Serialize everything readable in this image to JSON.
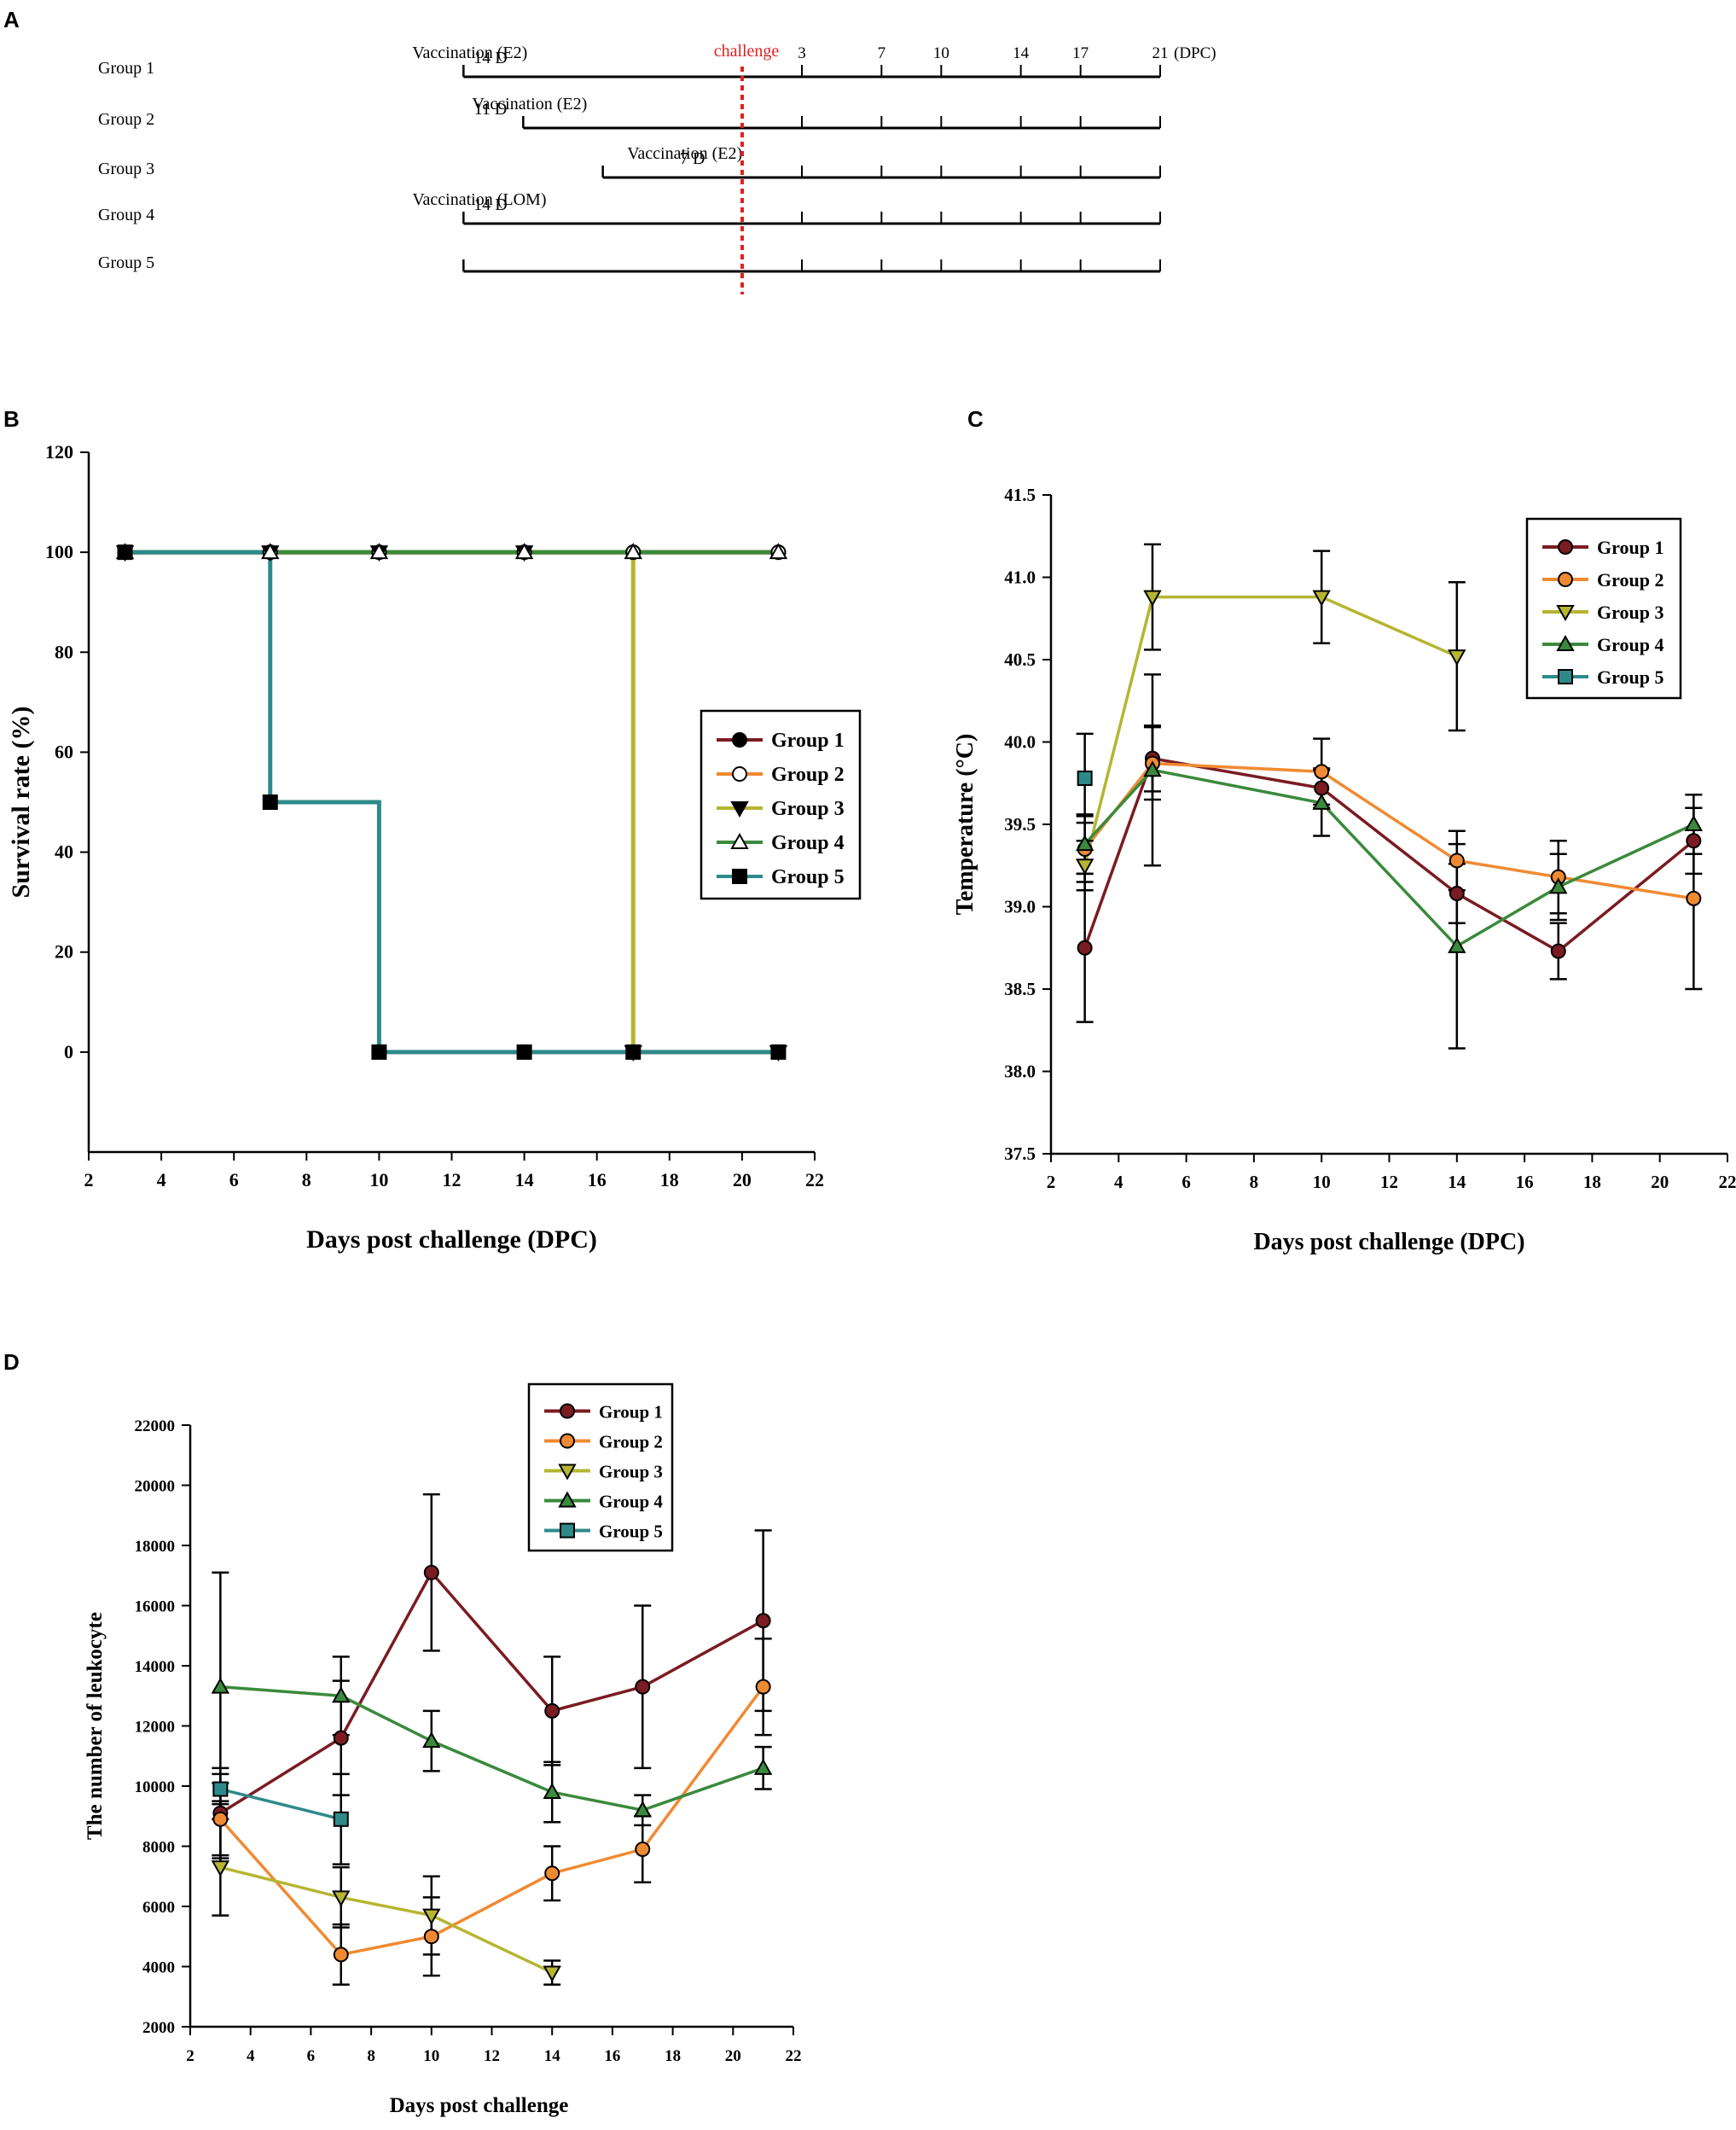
{
  "panels": {
    "A": "A",
    "B": "B",
    "C": "C",
    "D": "D"
  },
  "colors": {
    "group1": "#7a1c22",
    "group2": "#f08a32",
    "group3": "#b5b532",
    "group4": "#3a8a3c",
    "group5": "#2e8a8a",
    "challenge": "#e02020",
    "axis": "#000000"
  },
  "timeline": {
    "challenge_label": "challenge",
    "dpc_suffix": "(DPC)",
    "day_ticks": [
      "3",
      "7",
      "10",
      "14",
      "17",
      "21"
    ],
    "groups": [
      {
        "name": "Group 1",
        "vaccine": "Vaccination (E2)",
        "interval": "14 D",
        "start_day": -14
      },
      {
        "name": "Group 2",
        "vaccine": "Vaccination (E2)",
        "interval": "11 D",
        "start_day": -11
      },
      {
        "name": "Group 3",
        "vaccine": "Vaccination (E2)",
        "interval": "7 D",
        "start_day": -7
      },
      {
        "name": "Group 4",
        "vaccine": "Vaccination (LOM)",
        "interval": "14 D",
        "start_day": -14
      },
      {
        "name": "Group 5",
        "vaccine": "",
        "interval": "",
        "start_day": -14
      }
    ]
  },
  "chart_data": [
    {
      "id": "survival",
      "type": "line",
      "step": true,
      "xlabel": "Days post challenge (DPC)",
      "ylabel": "Survival rate (%)",
      "xlim": [
        2,
        22
      ],
      "ylim": [
        -20,
        120
      ],
      "xticks": [
        2,
        4,
        6,
        8,
        10,
        12,
        14,
        16,
        18,
        20,
        22
      ],
      "yticks": [
        0,
        20,
        40,
        60,
        80,
        100,
        120
      ],
      "legend": "middle-right",
      "series": [
        {
          "name": "Group 1",
          "marker": "circle-filled",
          "x": [
            3,
            7,
            10,
            14,
            17,
            21
          ],
          "values": [
            100,
            100,
            100,
            100,
            100,
            100
          ]
        },
        {
          "name": "Group 2",
          "marker": "circle-open",
          "x": [
            3,
            7,
            10,
            14,
            17,
            21
          ],
          "values": [
            100,
            100,
            100,
            100,
            100,
            100
          ]
        },
        {
          "name": "Group 3",
          "marker": "triangle-down-filled",
          "x": [
            3,
            7,
            10,
            14,
            17,
            21
          ],
          "values": [
            100,
            100,
            100,
            100,
            0,
            0
          ]
        },
        {
          "name": "Group 4",
          "marker": "triangle-up-open",
          "x": [
            3,
            7,
            10,
            14,
            17,
            21
          ],
          "values": [
            100,
            100,
            100,
            100,
            100,
            100
          ]
        },
        {
          "name": "Group 5",
          "marker": "square-filled",
          "x": [
            3,
            7,
            10,
            14,
            17,
            21
          ],
          "values": [
            100,
            50,
            0,
            0,
            0,
            0
          ]
        }
      ]
    },
    {
      "id": "temperature",
      "type": "line",
      "xlabel": "Days post challenge (DPC)",
      "ylabel": "Temperature (°C)",
      "xlim": [
        2,
        22
      ],
      "ylim": [
        37.5,
        41.5
      ],
      "xticks": [
        2,
        4,
        6,
        8,
        10,
        12,
        14,
        16,
        18,
        20,
        22
      ],
      "yticks": [
        "37.5",
        "38.0",
        "38.5",
        "39.0",
        "39.5",
        "40.0",
        "40.5",
        "41.0",
        "41.5"
      ],
      "legend": "top-right",
      "series": [
        {
          "name": "Group 1",
          "marker": "circle",
          "x": [
            3,
            5,
            10,
            14,
            17,
            21
          ],
          "values": [
            38.75,
            39.9,
            39.72,
            39.08,
            38.73,
            39.4
          ],
          "err": [
            0.45,
            0.2,
            0.12,
            0.18,
            0.17,
            0.2
          ]
        },
        {
          "name": "Group 2",
          "marker": "circle",
          "x": [
            3,
            5,
            10,
            14,
            17,
            21
          ],
          "values": [
            39.35,
            39.87,
            39.82,
            39.28,
            39.18,
            39.05
          ],
          "err": [
            0.2,
            0.22,
            0.2,
            0.18,
            0.22,
            0.55
          ]
        },
        {
          "name": "Group 3",
          "marker": "triangle-down",
          "x": [
            3,
            5,
            10,
            14
          ],
          "values": [
            39.25,
            40.88,
            40.88,
            40.52
          ],
          "err": [
            0.15,
            0.32,
            0.28,
            0.45
          ]
        },
        {
          "name": "Group 4",
          "marker": "triangle-up",
          "x": [
            3,
            5,
            10,
            14,
            17,
            21
          ],
          "values": [
            39.38,
            39.83,
            39.63,
            38.76,
            39.12,
            39.5
          ],
          "err": [
            0.18,
            0.58,
            0.2,
            0.62,
            0.2,
            0.18
          ]
        },
        {
          "name": "Group 5",
          "marker": "square",
          "x": [
            3
          ],
          "values": [
            39.78
          ],
          "err": [
            0.27
          ]
        }
      ]
    },
    {
      "id": "leukocyte",
      "type": "line",
      "xlabel": "Days post challenge",
      "ylabel": "The number of leukocyte",
      "xlim": [
        2,
        22
      ],
      "ylim": [
        2000,
        22000
      ],
      "xticks": [
        2,
        4,
        6,
        8,
        10,
        12,
        14,
        16,
        18,
        20,
        22
      ],
      "yticks": [
        2000,
        4000,
        6000,
        8000,
        10000,
        12000,
        14000,
        16000,
        18000,
        20000,
        22000
      ],
      "legend": "top-center",
      "series": [
        {
          "name": "Group 1",
          "marker": "circle",
          "x": [
            3,
            7,
            10,
            14,
            17,
            21
          ],
          "values": [
            9100,
            11600,
            17100,
            12500,
            13300,
            15500
          ],
          "err": [
            1500,
            1900,
            2600,
            1800,
            2700,
            3000
          ]
        },
        {
          "name": "Group 2",
          "marker": "circle",
          "x": [
            3,
            7,
            10,
            14,
            17,
            21
          ],
          "values": [
            8900,
            4400,
            5000,
            7100,
            7900,
            13300
          ],
          "err": [
            1200,
            1000,
            1300,
            900,
            1100,
            1600
          ]
        },
        {
          "name": "Group 3",
          "marker": "triangle-down",
          "x": [
            3,
            7,
            10,
            14
          ],
          "values": [
            7300,
            6300,
            5700,
            3800
          ],
          "err": [
            1600,
            1000,
            1300,
            400
          ]
        },
        {
          "name": "Group 4",
          "marker": "triangle-up",
          "x": [
            3,
            7,
            10,
            14,
            17,
            21
          ],
          "values": [
            13300,
            13000,
            11500,
            9800,
            9200,
            10600
          ],
          "err": [
            3800,
            1300,
            1000,
            1000,
            500,
            700
          ]
        },
        {
          "name": "Group 5",
          "marker": "square",
          "x": [
            3,
            7
          ],
          "values": [
            9900,
            8900
          ],
          "err": [
            500,
            1500
          ]
        }
      ]
    }
  ]
}
